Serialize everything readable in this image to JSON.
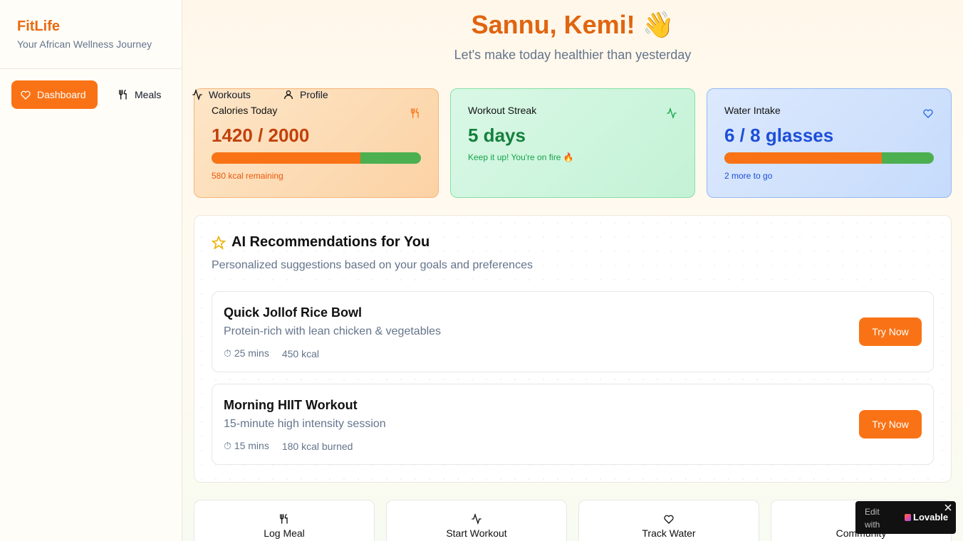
{
  "sidebar": {
    "brand": "FitLife",
    "tagline": "Your African Wellness Journey",
    "nav": [
      "Dashboard",
      "Meals",
      "Workouts",
      "Profile"
    ]
  },
  "header": {
    "greeting": "Sannu, Kemi! 👋",
    "subtitle": "Let's make today healthier than yesterday"
  },
  "cards": [
    {
      "title": "Calories Today",
      "value": "1420 / 2000",
      "progress": {
        "current": 1420,
        "goal": 2000
      },
      "note": "580 kcal remaining"
    },
    {
      "title": "Workout Streak",
      "value": "5 days",
      "note": "Keep it up! You're on fire 🔥"
    },
    {
      "title": "Water Intake",
      "value": "6 / 8 glasses",
      "progress": {
        "current": 6,
        "goal": 8
      },
      "note": "2 more to go"
    }
  ],
  "recommendations": {
    "title": "AI Recommendations for You",
    "subtitle": "Personalized suggestions based on your goals and preferences",
    "items": [
      {
        "name": "Quick Jollof Rice Bowl",
        "description": "Protein-rich with lean chicken & vegetables",
        "duration": "25 mins",
        "energy": "450 kcal",
        "action": "Try Now"
      },
      {
        "name": "Morning HIIT Workout",
        "description": "15-minute high intensity session",
        "duration": "15 mins",
        "energy": "180 kcal burned",
        "action": "Try Now"
      }
    ]
  },
  "quick_actions": [
    "Log Meal",
    "Start Workout",
    "Track Water",
    "Community"
  ],
  "badge": {
    "prefix": "Edit with",
    "brand": "Lovable"
  }
}
